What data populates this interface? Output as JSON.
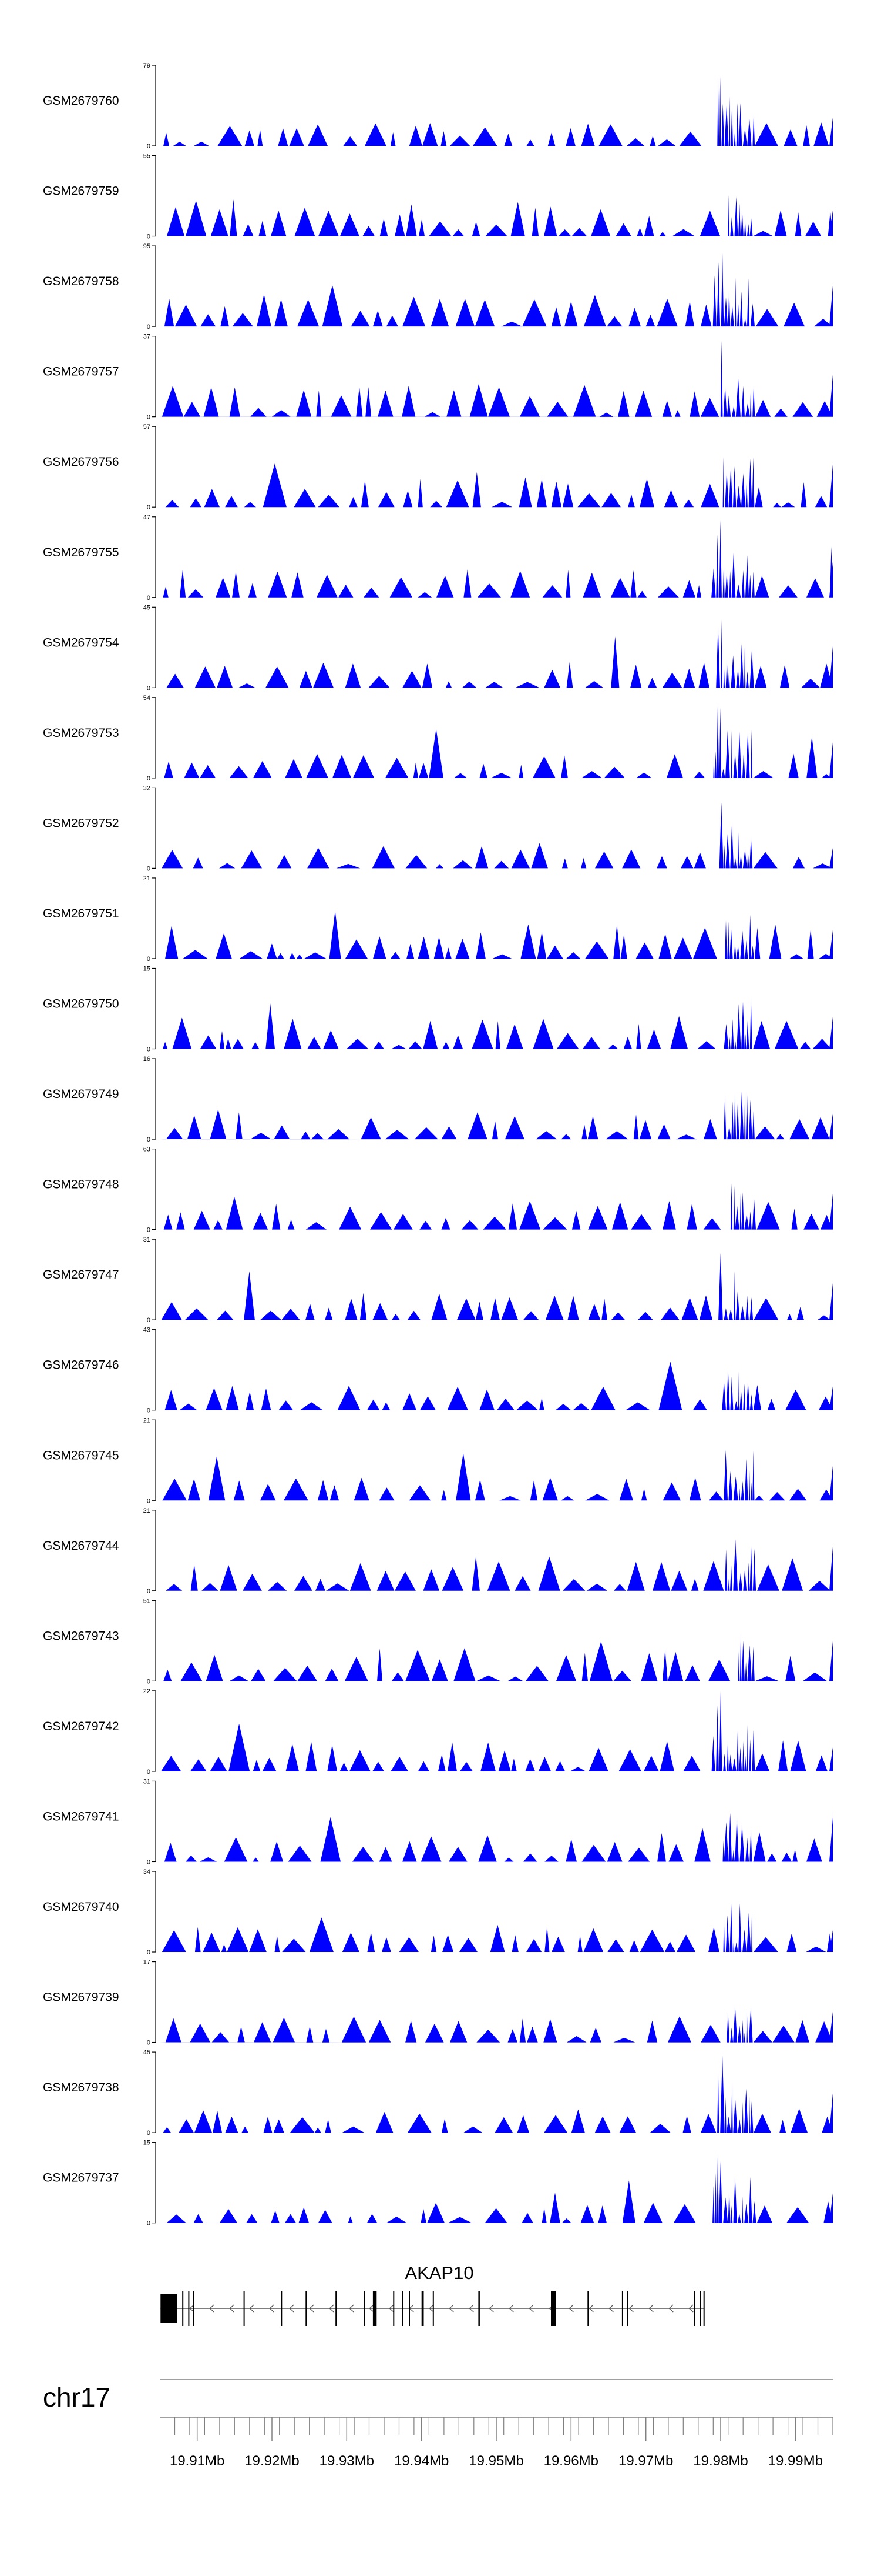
{
  "chart_data": {
    "type": "area",
    "title": "",
    "colors": {
      "fill": "#0000ff",
      "axis": "#000000",
      "text": "#000000",
      "gene": "#000000",
      "ruler": "#808080"
    },
    "xlim": [
      19.905,
      19.995
    ],
    "tracks": [
      {
        "name": "GSM2679760",
        "ymax": "79",
        "ymin": "0"
      },
      {
        "name": "GSM2679759",
        "ymax": "55",
        "ymin": "0"
      },
      {
        "name": "GSM2679758",
        "ymax": "95",
        "ymin": "0"
      },
      {
        "name": "GSM2679757",
        "ymax": "37",
        "ymin": "0"
      },
      {
        "name": "GSM2679756",
        "ymax": "57",
        "ymin": "0"
      },
      {
        "name": "GSM2679755",
        "ymax": "47",
        "ymin": "0"
      },
      {
        "name": "GSM2679754",
        "ymax": "45",
        "ymin": "0"
      },
      {
        "name": "GSM2679753",
        "ymax": "54",
        "ymin": "0"
      },
      {
        "name": "GSM2679752",
        "ymax": "32",
        "ymin": "0"
      },
      {
        "name": "GSM2679751",
        "ymax": "21",
        "ymin": "0"
      },
      {
        "name": "GSM2679750",
        "ymax": "15",
        "ymin": "0"
      },
      {
        "name": "GSM2679749",
        "ymax": "16",
        "ymin": "0"
      },
      {
        "name": "GSM2679748",
        "ymax": "63",
        "ymin": "0"
      },
      {
        "name": "GSM2679747",
        "ymax": "31",
        "ymin": "0"
      },
      {
        "name": "GSM2679746",
        "ymax": "43",
        "ymin": "0"
      },
      {
        "name": "GSM2679745",
        "ymax": "21",
        "ymin": "0"
      },
      {
        "name": "GSM2679744",
        "ymax": "21",
        "ymin": "0"
      },
      {
        "name": "GSM2679743",
        "ymax": "51",
        "ymin": "0"
      },
      {
        "name": "GSM2679742",
        "ymax": "22",
        "ymin": "0"
      },
      {
        "name": "GSM2679741",
        "ymax": "31",
        "ymin": "0"
      },
      {
        "name": "GSM2679740",
        "ymax": "34",
        "ymin": "0"
      },
      {
        "name": "GSM2679739",
        "ymax": "17",
        "ymin": "0"
      },
      {
        "name": "GSM2679738",
        "ymax": "45",
        "ymin": "0"
      },
      {
        "name": "GSM2679737",
        "ymax": "15",
        "ymin": "0"
      }
    ],
    "gene": {
      "name": "AKAP10",
      "strand": "-",
      "start": 19.9051,
      "end": 19.9778,
      "exons": [
        [
          19.9051,
          19.9073
        ],
        [
          19.908,
          19.9081
        ],
        [
          19.9088,
          19.9089
        ],
        [
          19.9094,
          19.9095
        ],
        [
          19.9162,
          19.9163
        ],
        [
          19.9212,
          19.9213
        ],
        [
          19.9245,
          19.9246
        ],
        [
          19.9285,
          19.9286
        ],
        [
          19.9323,
          19.9324
        ],
        [
          19.9335,
          19.934
        ],
        [
          19.9362,
          19.9363
        ],
        [
          19.9374,
          19.9375
        ],
        [
          19.9383,
          19.9384
        ],
        [
          19.94,
          19.9403
        ],
        [
          19.9415,
          19.9416
        ],
        [
          19.9476,
          19.9478
        ],
        [
          19.9573,
          19.958
        ],
        [
          19.9622,
          19.9623
        ],
        [
          19.9668,
          19.9669
        ],
        [
          19.9675,
          19.9676
        ],
        [
          19.9764,
          19.9765
        ],
        [
          19.9772,
          19.9773
        ],
        [
          19.9777,
          19.9778
        ]
      ]
    },
    "axis": {
      "chromosome": "chr17",
      "tick_labels": [
        "19.91Mb",
        "19.92Mb",
        "19.93Mb",
        "19.94Mb",
        "19.95Mb",
        "19.96Mb",
        "19.97Mb",
        "19.98Mb",
        "19.99Mb"
      ],
      "tick_values": [
        19.91,
        19.92,
        19.93,
        19.94,
        19.95,
        19.96,
        19.97,
        19.98,
        19.99
      ],
      "minor_step": 0.002
    }
  }
}
